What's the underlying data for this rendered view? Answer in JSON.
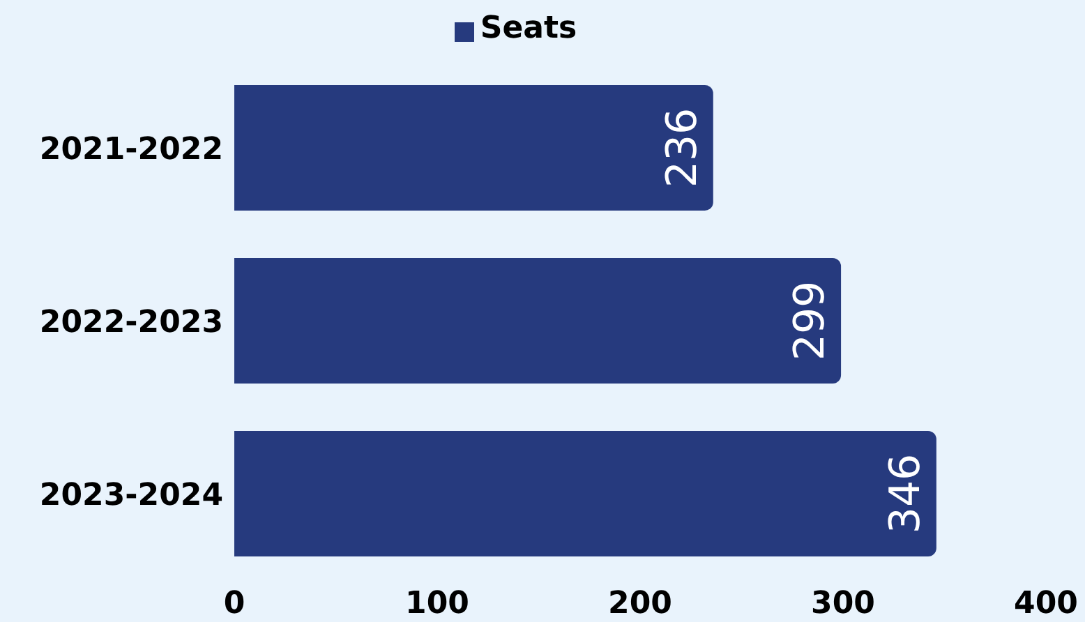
{
  "chart_data": {
    "type": "bar",
    "orientation": "horizontal",
    "categories": [
      "2021-2022",
      "2022-2023",
      "2023-2024"
    ],
    "series": [
      {
        "name": "Seats",
        "color": "#263a7e",
        "values": [
          236,
          299,
          346
        ]
      }
    ],
    "xlim": [
      0,
      400
    ],
    "xticks": [
      0,
      100,
      200,
      300,
      400
    ],
    "legend": "top",
    "data_labels": true,
    "grid": false
  }
}
